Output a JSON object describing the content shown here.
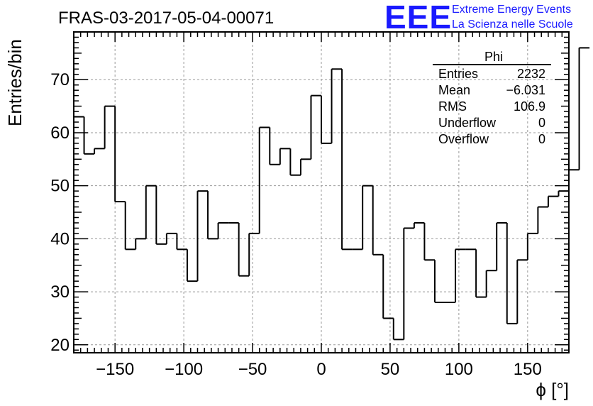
{
  "title": "FRAS-03-2017-05-04-00071",
  "logo": {
    "mark": "EEE",
    "line1": "Extreme Energy Events",
    "line2": "La Scienza nelle Scuole",
    "color": "#1a1aff"
  },
  "stats_box": {
    "name": "Phi",
    "rows": [
      {
        "label": "Entries",
        "value": "2232"
      },
      {
        "label": "Mean",
        "value": "−6.031"
      },
      {
        "label": "RMS",
        "value": "106.9"
      },
      {
        "label": "Underflow",
        "value": "0"
      },
      {
        "label": "Overflow",
        "value": "0"
      }
    ]
  },
  "chart_data": {
    "type": "bar",
    "style": "step histogram",
    "xlabel": "ϕ [°]",
    "ylabel": "Entries/bin",
    "xlim": [
      -180,
      180
    ],
    "ylim": [
      18.5,
      79
    ],
    "xticks": [
      -150,
      -100,
      -50,
      0,
      50,
      100,
      150
    ],
    "xtick_labels": [
      "−150",
      "−100",
      "−50",
      "0",
      "50",
      "100",
      "150"
    ],
    "yticks": [
      20,
      30,
      40,
      50,
      60,
      70
    ],
    "grid": true,
    "bin_width": 7.5,
    "bin_low_edge": -180,
    "values": [
      63,
      56,
      57,
      65,
      47,
      38,
      40,
      50,
      39,
      41,
      38,
      32,
      49,
      40,
      43,
      43,
      33,
      41,
      61,
      54,
      57,
      52,
      55,
      67,
      58,
      72,
      38,
      38,
      50,
      37,
      25,
      21,
      42,
      43,
      36,
      28,
      28,
      38,
      38,
      29,
      34,
      43,
      24,
      36,
      41,
      46,
      48,
      49,
      53,
      76
    ]
  }
}
